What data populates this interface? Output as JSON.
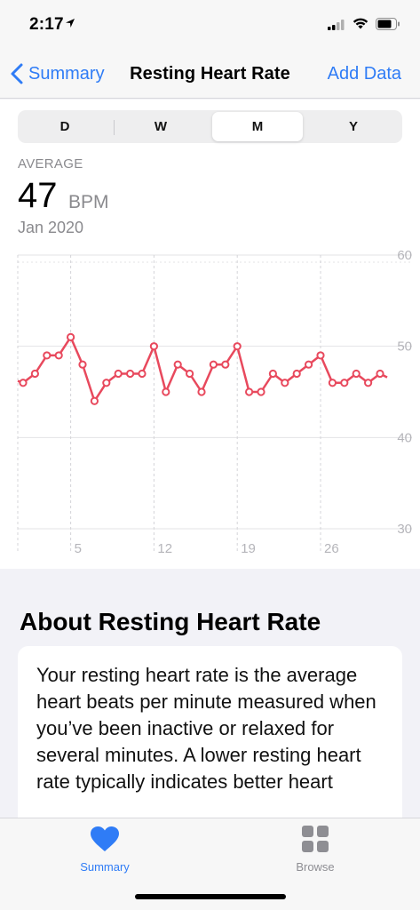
{
  "status": {
    "time": "2:17"
  },
  "nav": {
    "back_label": "Summary",
    "title": "Resting Heart Rate",
    "action_label": "Add Data"
  },
  "segments": [
    {
      "label": "D",
      "active": false
    },
    {
      "label": "W",
      "active": false
    },
    {
      "label": "M",
      "active": true
    },
    {
      "label": "Y",
      "active": false
    }
  ],
  "summary": {
    "label": "AVERAGE",
    "value": "47",
    "unit": "BPM",
    "period": "Jan 2020"
  },
  "colors": {
    "accent": "#2f7cf6",
    "series": "#e8495d",
    "grid": "#e3e3e6",
    "axis_text": "#b5b5ba"
  },
  "chart_data": {
    "type": "line",
    "title": "",
    "xlabel": "",
    "ylabel": "",
    "x_ticks": [
      {
        "label": "5",
        "day": 5
      },
      {
        "label": "12",
        "day": 12
      },
      {
        "label": "19",
        "day": 19
      },
      {
        "label": "26",
        "day": 26
      }
    ],
    "y_ticks": [
      60,
      50,
      40,
      30
    ],
    "ylim": [
      30,
      60
    ],
    "xlim": [
      1,
      31
    ],
    "grid": true,
    "series": [
      {
        "x": [
          1,
          2,
          3,
          4,
          5,
          6,
          7,
          8,
          9,
          10,
          11,
          12,
          13,
          14,
          15,
          16,
          17,
          18,
          19,
          20,
          21,
          22,
          23,
          24,
          25,
          26,
          27,
          28,
          29,
          30,
          31
        ],
        "values": [
          46,
          47,
          49,
          49,
          51,
          48,
          44,
          46,
          47,
          47,
          47,
          50,
          45,
          48,
          47,
          45,
          48,
          48,
          50,
          45,
          45,
          47,
          46,
          47,
          48,
          49,
          46,
          46,
          47,
          46,
          47
        ]
      }
    ]
  },
  "about": {
    "title": "About Resting Heart Rate",
    "body": "Your resting heart rate is the average heart beats per minute measured when you’ve been inactive or relaxed for several minutes. A lower resting heart rate typically indicates better heart"
  },
  "tabs": [
    {
      "label": "Summary",
      "icon": "heart-icon",
      "active": true
    },
    {
      "label": "Browse",
      "icon": "grid-icon",
      "active": false
    }
  ]
}
